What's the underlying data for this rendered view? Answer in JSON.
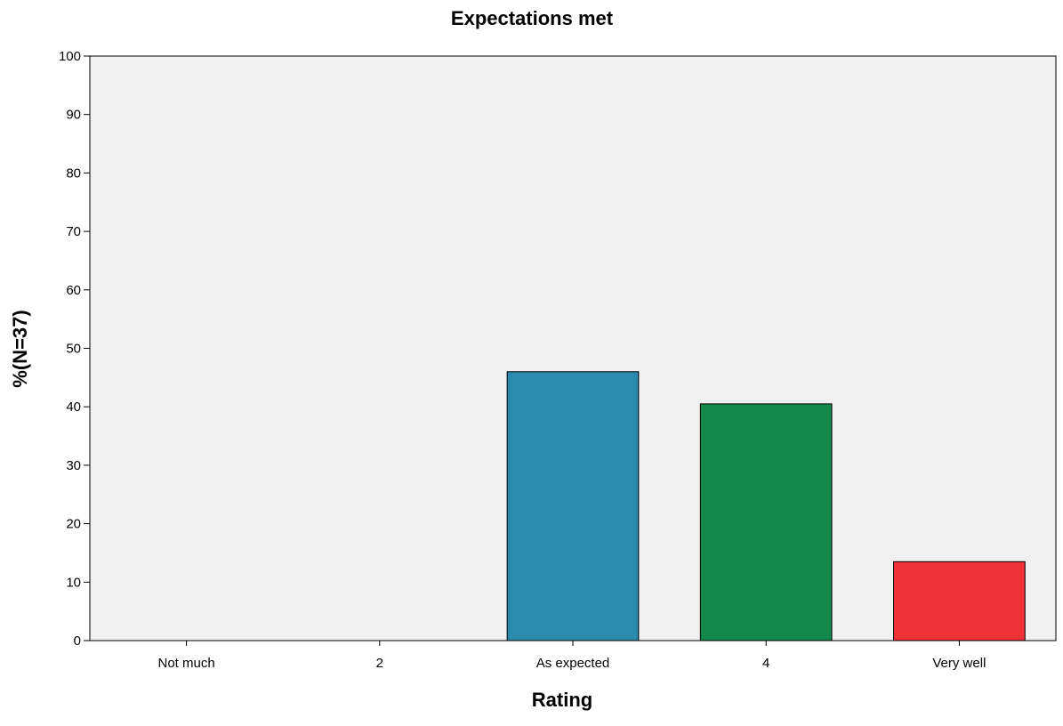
{
  "chart_data": {
    "type": "bar",
    "title": "Expectations met",
    "xlabel": "Rating",
    "ylabel": "%(N=37)",
    "categories": [
      "Not much",
      "2",
      "As expected",
      "4",
      "Very well"
    ],
    "values": [
      0,
      0,
      46.0,
      40.5,
      13.5
    ],
    "colors": [
      "#2a8bad",
      "#2a8bad",
      "#2a8bad",
      "#12894a",
      "#ee3238"
    ],
    "ylim": [
      0,
      100
    ],
    "yticks": [
      0,
      10,
      20,
      30,
      40,
      50,
      60,
      70,
      80,
      90,
      100
    ],
    "plot_background": "#f0f0f0",
    "grid": false,
    "legend": "none"
  }
}
